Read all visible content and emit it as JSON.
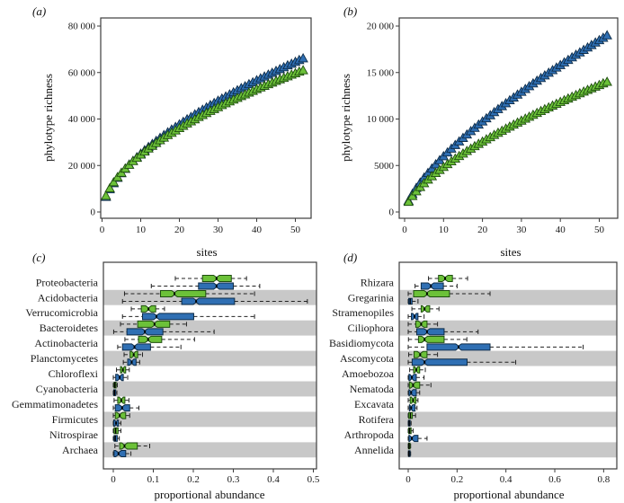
{
  "colors": {
    "green": "#6cc139",
    "green_edge": "#1e4d0f",
    "blue": "#2f6fb3",
    "blue_edge": "#0d2b47",
    "band": "#c8c8c8",
    "axis": "#3c3c3c",
    "text": "#1a1a1a"
  },
  "panels": {
    "a": {
      "letter": "(a)",
      "ylabel": "phylotype richness",
      "xlabel": "sites"
    },
    "b": {
      "letter": "(b)",
      "ylabel": "phylotype richness",
      "xlabel": "sites"
    },
    "c": {
      "letter": "(c)",
      "xlabel": "proportional abundance"
    },
    "d": {
      "letter": "(d)",
      "xlabel": "proportional abundance"
    }
  },
  "chart_data": [
    {
      "id": "a",
      "type": "scatter",
      "marker": "triangle",
      "xlabel": "sites",
      "ylabel": "phylotype richness",
      "xlim": [
        0,
        54
      ],
      "ylim": [
        0,
        83000
      ],
      "grid": false,
      "legend": "none",
      "xticks": [
        {
          "v": 0,
          "label": "0"
        },
        {
          "v": 10,
          "label": "10"
        },
        {
          "v": 20,
          "label": "20"
        },
        {
          "v": 30,
          "label": "30"
        },
        {
          "v": 40,
          "label": "40"
        },
        {
          "v": 50,
          "label": "50"
        }
      ],
      "yticks": [
        {
          "v": 0,
          "label": "0"
        },
        {
          "v": 20000,
          "label": "20 000"
        },
        {
          "v": 40000,
          "label": "40 000"
        },
        {
          "v": 60000,
          "label": "60 000"
        },
        {
          "v": 80000,
          "label": "80 000"
        }
      ],
      "x": [
        1,
        2,
        3,
        4,
        5,
        6,
        7,
        8,
        9,
        10,
        11,
        12,
        13,
        14,
        15,
        16,
        17,
        18,
        19,
        20,
        21,
        22,
        23,
        24,
        25,
        26,
        27,
        28,
        29,
        30,
        31,
        32,
        33,
        34,
        35,
        36,
        37,
        38,
        39,
        40,
        41,
        42,
        43,
        44,
        45,
        46,
        47,
        48,
        49,
        50,
        51,
        52
      ],
      "series": [
        {
          "name": "blue",
          "color": "blue",
          "values": [
            6500,
            9800,
            12400,
            14700,
            16700,
            18600,
            20400,
            22000,
            23600,
            25100,
            26600,
            28000,
            29300,
            30600,
            31900,
            33100,
            34300,
            35500,
            36600,
            37700,
            38800,
            39900,
            40900,
            42000,
            43000,
            44000,
            45000,
            46000,
            46900,
            47900,
            48800,
            49700,
            50600,
            51500,
            52400,
            53300,
            54100,
            55000,
            55800,
            56700,
            57500,
            58300,
            59100,
            59900,
            60700,
            61500,
            62300,
            63100,
            63800,
            64600,
            65400,
            66100
          ]
        },
        {
          "name": "green",
          "color": "green",
          "values": [
            7000,
            10200,
            12800,
            15000,
            16900,
            18700,
            20300,
            21900,
            23300,
            24700,
            26000,
            27300,
            28500,
            29700,
            30900,
            32000,
            33100,
            34100,
            35100,
            36100,
            37100,
            38100,
            39000,
            39900,
            40900,
            41700,
            42600,
            43500,
            44300,
            45100,
            46000,
            46800,
            47600,
            48400,
            49100,
            49900,
            50600,
            51400,
            52100,
            52900,
            53600,
            54300,
            55000,
            55700,
            56400,
            57100,
            57700,
            58400,
            59100,
            59700,
            60400,
            61000
          ]
        }
      ]
    },
    {
      "id": "b",
      "type": "scatter",
      "marker": "triangle",
      "xlabel": "sites",
      "ylabel": "phylotype richness",
      "xlim": [
        0,
        54
      ],
      "ylim": [
        0,
        21000
      ],
      "grid": false,
      "legend": "none",
      "xticks": [
        {
          "v": 0,
          "label": "0"
        },
        {
          "v": 10,
          "label": "10"
        },
        {
          "v": 20,
          "label": "20"
        },
        {
          "v": 30,
          "label": "30"
        },
        {
          "v": 40,
          "label": "40"
        },
        {
          "v": 50,
          "label": "50"
        }
      ],
      "yticks": [
        {
          "v": 0,
          "label": "0"
        },
        {
          "v": 5000,
          "label": "5000"
        },
        {
          "v": 10000,
          "label": "10 000"
        },
        {
          "v": 15000,
          "label": "15 000"
        },
        {
          "v": 20000,
          "label": "20 000"
        }
      ],
      "x": [
        1,
        2,
        3,
        4,
        5,
        6,
        7,
        8,
        9,
        10,
        11,
        12,
        13,
        14,
        15,
        16,
        17,
        18,
        19,
        20,
        21,
        22,
        23,
        24,
        25,
        26,
        27,
        28,
        29,
        30,
        31,
        32,
        33,
        34,
        35,
        36,
        37,
        38,
        39,
        40,
        41,
        42,
        43,
        44,
        45,
        46,
        47,
        48,
        49,
        50,
        51,
        52
      ],
      "series": [
        {
          "name": "blue",
          "color": "blue",
          "values": [
            1200,
            1950,
            2590,
            3160,
            3700,
            4200,
            4680,
            5130,
            5570,
            6000,
            6410,
            6820,
            7210,
            7590,
            7970,
            8340,
            8700,
            9050,
            9400,
            9740,
            10080,
            10410,
            10740,
            11070,
            11390,
            11700,
            12020,
            12320,
            12630,
            12930,
            13230,
            13530,
            13830,
            14120,
            14410,
            14690,
            14980,
            15260,
            15540,
            15810,
            16090,
            16360,
            16640,
            16910,
            17170,
            17440,
            17700,
            17960,
            18230,
            18480,
            18740,
            19000
          ]
        },
        {
          "name": "green",
          "color": "green",
          "values": [
            1100,
            1720,
            2230,
            2690,
            3100,
            3490,
            3850,
            4200,
            4530,
            4850,
            5150,
            5450,
            5740,
            6020,
            6290,
            6560,
            6820,
            7080,
            7330,
            7570,
            7820,
            8050,
            8290,
            8520,
            8740,
            8970,
            9190,
            9400,
            9620,
            9830,
            10040,
            10250,
            10450,
            10660,
            10860,
            11060,
            11250,
            11450,
            11640,
            11840,
            12020,
            12210,
            12400,
            12580,
            12770,
            12950,
            13130,
            13310,
            13490,
            13660,
            13840,
            14000
          ]
        }
      ]
    },
    {
      "id": "c",
      "type": "boxplot",
      "orientation": "horizontal",
      "xlabel": "proportional abundance",
      "xlim": [
        0,
        0.52
      ],
      "grid": false,
      "legend": "none",
      "xticks": [
        {
          "v": 0,
          "label": "0"
        },
        {
          "v": 0.1,
          "label": "0.1"
        },
        {
          "v": 0.2,
          "label": "0.2"
        },
        {
          "v": 0.3,
          "label": "0.3"
        },
        {
          "v": 0.4,
          "label": "0.4"
        },
        {
          "v": 0.5,
          "label": "0.5"
        }
      ],
      "box_stats_order": [
        "whisker_low",
        "q1",
        "median",
        "q3",
        "whisker_high"
      ],
      "rows": [
        {
          "taxon": "Proteobacteria",
          "green": [
            0.155,
            0.223,
            0.258,
            0.295,
            0.333
          ],
          "blue": [
            0.095,
            0.213,
            0.258,
            0.3,
            0.366
          ]
        },
        {
          "taxon": "Acidobacteria",
          "green": [
            0.028,
            0.118,
            0.153,
            0.231,
            0.353
          ],
          "blue": [
            0.023,
            0.171,
            0.207,
            0.303,
            0.485
          ]
        },
        {
          "taxon": "Verrucomicrobia",
          "green": [
            0.045,
            0.07,
            0.088,
            0.106,
            0.128
          ],
          "blue": [
            0.023,
            0.073,
            0.108,
            0.201,
            0.353
          ]
        },
        {
          "taxon": "Bacteroidetes",
          "green": [
            0.018,
            0.061,
            0.103,
            0.141,
            0.183
          ],
          "blue": [
            0.001,
            0.034,
            0.079,
            0.124,
            0.252
          ]
        },
        {
          "taxon": "Actinobacteria",
          "green": [
            0.029,
            0.063,
            0.087,
            0.121,
            0.203
          ],
          "blue": [
            0.011,
            0.023,
            0.053,
            0.093,
            0.169
          ]
        },
        {
          "taxon": "Planctomycetes",
          "green": [
            0.027,
            0.042,
            0.051,
            0.061,
            0.073
          ],
          "blue": [
            0.025,
            0.036,
            0.046,
            0.057,
            0.066
          ]
        },
        {
          "taxon": "Chloroflexi",
          "green": [
            0.008,
            0.018,
            0.024,
            0.031,
            0.04
          ],
          "blue": [
            0.0,
            0.006,
            0.016,
            0.025,
            0.036
          ]
        },
        {
          "taxon": "Cyanobacteria",
          "green": [
            0.0,
            0.002,
            0.004,
            0.007,
            0.01
          ],
          "blue": [
            0.0,
            0.001,
            0.003,
            0.006,
            0.009
          ]
        },
        {
          "taxon": "Gemmatimonadetes",
          "green": [
            0.002,
            0.011,
            0.02,
            0.029,
            0.039
          ],
          "blue": [
            0.0,
            0.005,
            0.022,
            0.041,
            0.064
          ]
        },
        {
          "taxon": "Firmicutes",
          "green": [
            0.0,
            0.005,
            0.016,
            0.031,
            0.041
          ],
          "blue": [
            0.0,
            0.001,
            0.007,
            0.013,
            0.019
          ]
        },
        {
          "taxon": "Nitrospirae",
          "green": [
            0.0,
            0.002,
            0.006,
            0.012,
            0.019
          ],
          "blue": [
            0.0,
            0.002,
            0.005,
            0.01,
            0.015
          ]
        },
        {
          "taxon": "Archaea",
          "green": [
            0.004,
            0.016,
            0.028,
            0.06,
            0.091
          ],
          "blue": [
            0.0,
            0.002,
            0.013,
            0.031,
            0.044
          ]
        }
      ]
    },
    {
      "id": "d",
      "type": "boxplot",
      "orientation": "horizontal",
      "xlabel": "proportional abundance",
      "xlim": [
        0,
        0.85
      ],
      "grid": false,
      "legend": "none",
      "xticks": [
        {
          "v": 0,
          "label": "0"
        },
        {
          "v": 0.2,
          "label": "0.2"
        },
        {
          "v": 0.4,
          "label": "0.4"
        },
        {
          "v": 0.6,
          "label": "0.6"
        },
        {
          "v": 0.8,
          "label": "0.8"
        }
      ],
      "box_stats_order": [
        "whisker_low",
        "q1",
        "median",
        "q3",
        "whisker_high"
      ],
      "rows": [
        {
          "taxon": "Rhizara",
          "green": [
            0.083,
            0.124,
            0.151,
            0.181,
            0.243
          ],
          "blue": [
            0.028,
            0.053,
            0.093,
            0.144,
            0.2
          ]
        },
        {
          "taxon": "Gregarinia",
          "green": [
            0.0,
            0.022,
            0.077,
            0.169,
            0.335
          ],
          "blue": [
            0.0,
            0.002,
            0.008,
            0.016,
            0.04
          ]
        },
        {
          "taxon": "Stramenopiles",
          "green": [
            0.015,
            0.053,
            0.067,
            0.088,
            0.126
          ],
          "blue": [
            0.0,
            0.013,
            0.026,
            0.04,
            0.065
          ]
        },
        {
          "taxon": "Ciliophora",
          "green": [
            0.0,
            0.031,
            0.053,
            0.077,
            0.12
          ],
          "blue": [
            0.0,
            0.035,
            0.077,
            0.147,
            0.286
          ]
        },
        {
          "taxon": "Basidiomycota",
          "green": [
            0.001,
            0.042,
            0.067,
            0.147,
            0.24
          ],
          "blue": [
            0.0,
            0.077,
            0.206,
            0.335,
            0.716
          ]
        },
        {
          "taxon": "Ascomycota",
          "green": [
            0.002,
            0.024,
            0.049,
            0.077,
            0.12
          ],
          "blue": [
            0.0,
            0.016,
            0.067,
            0.241,
            0.44
          ]
        },
        {
          "taxon": "Amoebozoa",
          "green": [
            0.006,
            0.022,
            0.033,
            0.047,
            0.07
          ],
          "blue": [
            0.0,
            0.003,
            0.015,
            0.033,
            0.065
          ]
        },
        {
          "taxon": "Nematoda",
          "green": [
            0.0,
            0.005,
            0.02,
            0.047,
            0.093
          ],
          "blue": [
            0.0,
            0.003,
            0.012,
            0.033,
            0.047
          ]
        },
        {
          "taxon": "Excavata",
          "green": [
            0.0,
            0.008,
            0.02,
            0.032,
            0.04
          ],
          "blue": [
            0.0,
            0.005,
            0.012,
            0.028,
            0.036
          ]
        },
        {
          "taxon": "Rotifera",
          "green": [
            0.0,
            0.002,
            0.009,
            0.017,
            0.03
          ],
          "blue": [
            0.0,
            0.001,
            0.004,
            0.008,
            0.012
          ]
        },
        {
          "taxon": "Arthropoda",
          "green": [
            0.0,
            0.002,
            0.006,
            0.012,
            0.02
          ],
          "blue": [
            0.0,
            0.003,
            0.015,
            0.04,
            0.077
          ]
        },
        {
          "taxon": "Annelida",
          "green": [
            0.0,
            0.001,
            0.003,
            0.006,
            0.01
          ],
          "blue": [
            0.0,
            0.001,
            0.003,
            0.006,
            0.01
          ]
        }
      ]
    }
  ]
}
